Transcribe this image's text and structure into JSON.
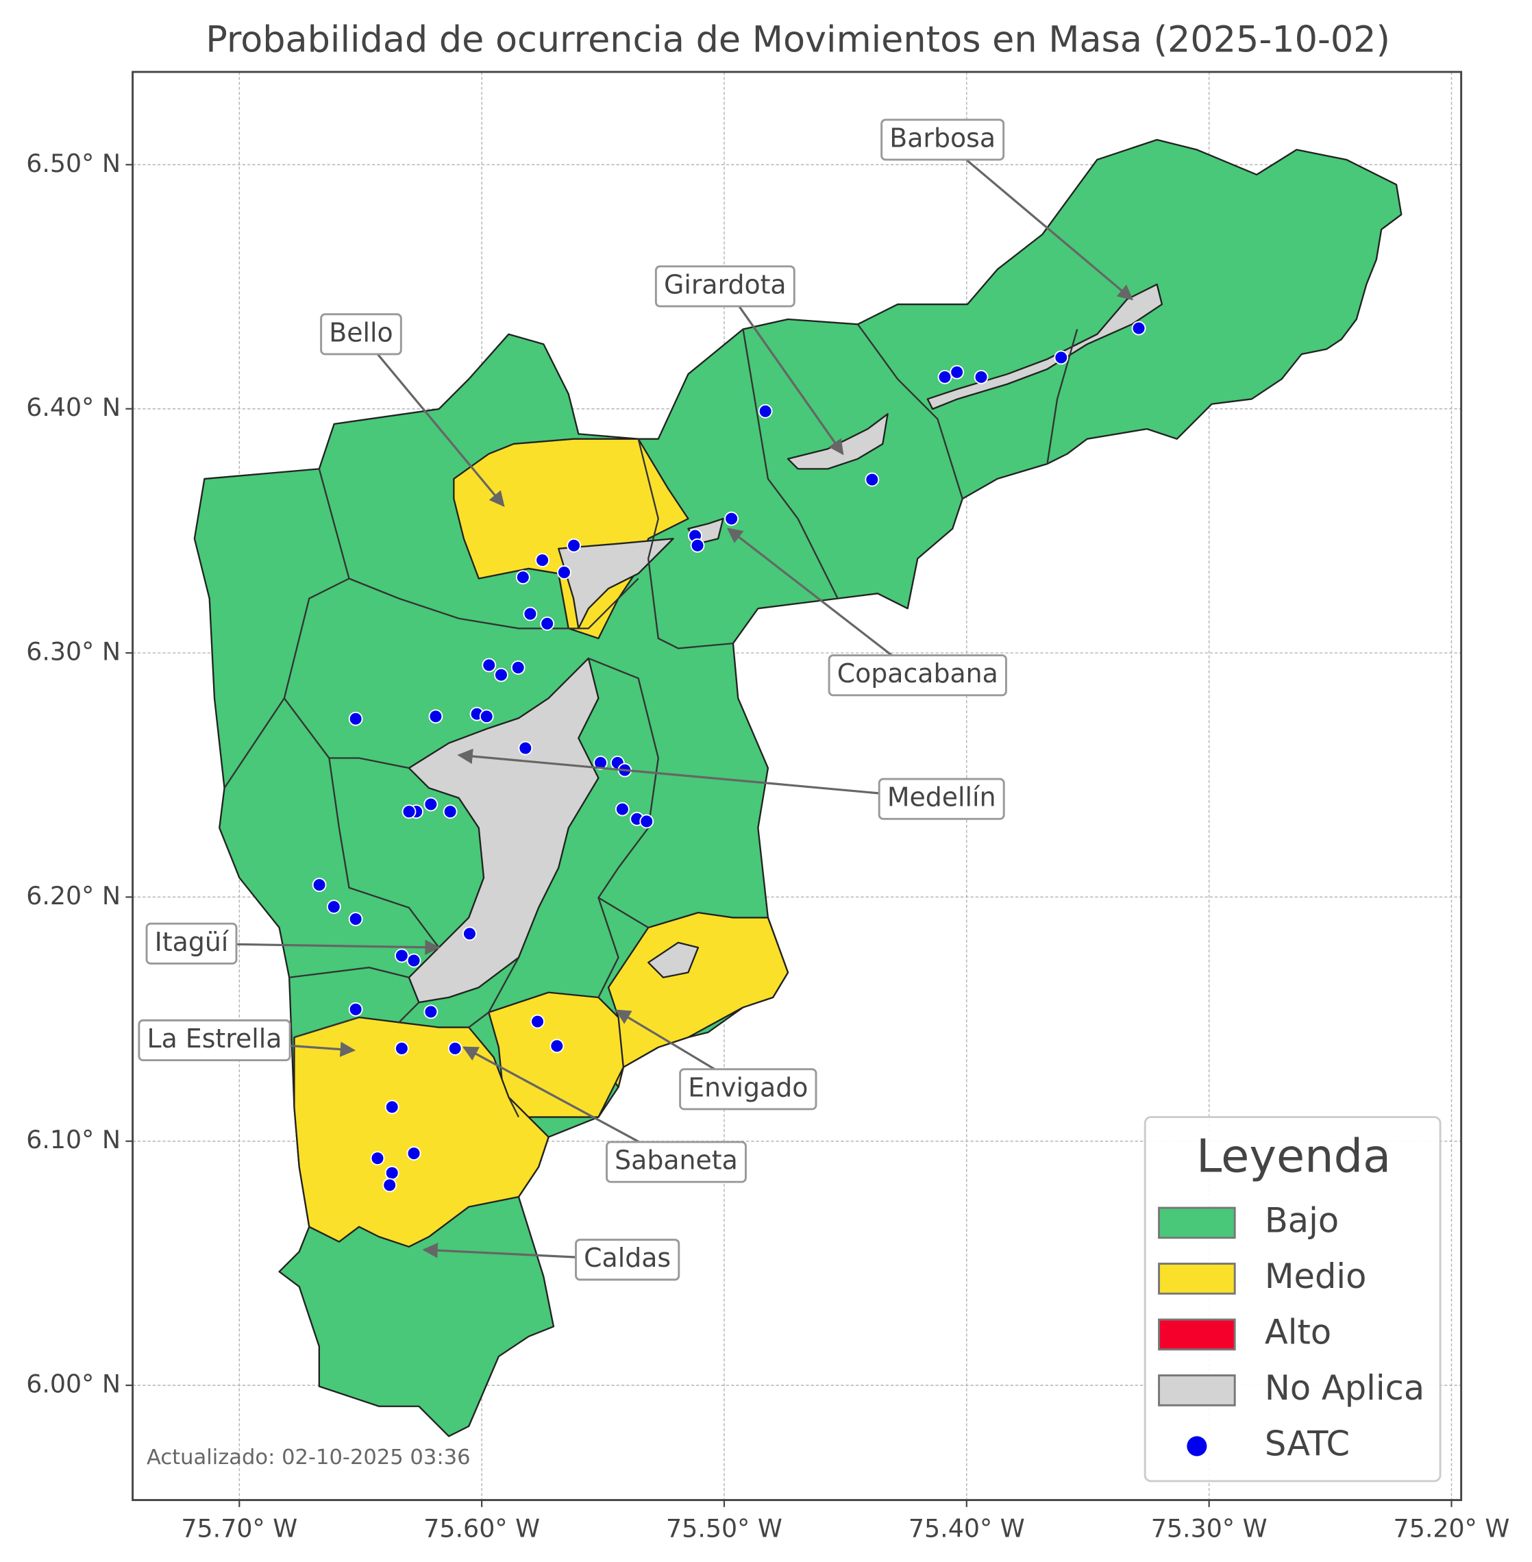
{
  "map": {
    "title": "Probabilidad de ocurrencia de Movimientos en Masa (2025-10-02)",
    "xlim": [
      -75.744,
      -75.196
    ],
    "ylim": [
      5.953,
      6.538
    ],
    "xticks": [
      {
        "value": -75.7,
        "label": "75.70° W"
      },
      {
        "value": -75.6,
        "label": "75.60° W"
      },
      {
        "value": -75.5,
        "label": "75.50° W"
      },
      {
        "value": -75.4,
        "label": "75.40° W"
      },
      {
        "value": -75.3,
        "label": "75.30° W"
      },
      {
        "value": -75.2,
        "label": "75.20° W"
      }
    ],
    "yticks": [
      {
        "value": 6.0,
        "label": "6.00° N"
      },
      {
        "value": 6.1,
        "label": "6.10° N"
      },
      {
        "value": 6.2,
        "label": "6.20° N"
      },
      {
        "value": 6.3,
        "label": "6.30° N"
      },
      {
        "value": 6.4,
        "label": "6.40° N"
      },
      {
        "value": 6.5,
        "label": "6.50° N"
      }
    ],
    "grid": true,
    "legend": {
      "title": "Leyenda",
      "corner": "lower right",
      "entries": [
        {
          "name": "Bajo",
          "color": "#48c878"
        },
        {
          "name": "Medio",
          "color": "#fbe02a"
        },
        {
          "name": "Alto",
          "color": "#f5002b"
        },
        {
          "name": "No Aplica",
          "color": "#d3d3d3"
        }
      ]
    },
    "points": {
      "name": "SATC",
      "color": "#0000ee",
      "lon": [
        -75.483,
        -75.439,
        -75.409,
        -75.404,
        -75.394,
        -75.361,
        -75.329,
        -75.497,
        -75.512,
        -75.511,
        -75.562,
        -75.575,
        -75.566,
        -75.583,
        -75.58,
        -75.573,
        -75.597,
        -75.592,
        -75.585,
        -75.619,
        -75.602,
        -75.598,
        -75.652,
        -75.582,
        -75.551,
        -75.544,
        -75.541,
        -75.542,
        -75.536,
        -75.532,
        -75.621,
        -75.627,
        -75.63,
        -75.613,
        -75.667,
        -75.661,
        -75.652,
        -75.605,
        -75.633,
        -75.628,
        -75.621,
        -75.652,
        -75.577,
        -75.569,
        -75.633,
        -75.611,
        -75.637,
        -75.643,
        -75.628,
        -75.637,
        -75.638
      ],
      "lat": [
        6.399,
        6.371,
        6.413,
        6.415,
        6.413,
        6.421,
        6.433,
        6.355,
        6.348,
        6.344,
        6.344,
        6.338,
        6.333,
        6.331,
        6.316,
        6.312,
        6.295,
        6.291,
        6.294,
        6.274,
        6.275,
        6.274,
        6.273,
        6.261,
        6.255,
        6.255,
        6.252,
        6.236,
        6.232,
        6.231,
        6.238,
        6.235,
        6.235,
        6.235,
        6.205,
        6.196,
        6.191,
        6.185,
        6.176,
        6.174,
        6.153,
        6.154,
        6.149,
        6.139,
        6.138,
        6.138,
        6.114,
        6.093,
        6.095,
        6.087,
        6.082
      ]
    },
    "annotations": [
      "Barbosa",
      "Girardota",
      "Bello",
      "Copacabana",
      "Medellín",
      "Itagüí",
      "La Estrella",
      "Envigado",
      "Sabaneta",
      "Caldas"
    ],
    "footnote": "Actualizado: 02-10-2025 03:36"
  }
}
